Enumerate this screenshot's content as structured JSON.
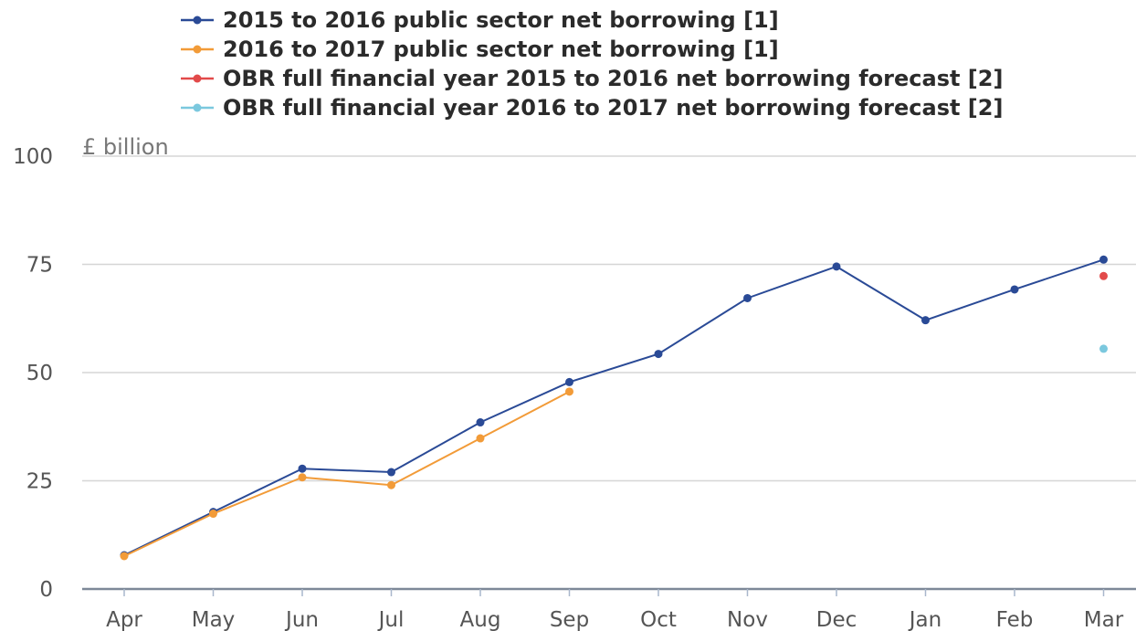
{
  "chart_data": {
    "type": "line",
    "ylabel": "£ billion",
    "ylim": [
      0,
      100
    ],
    "yticks": [
      0,
      25,
      50,
      75,
      100
    ],
    "categories": [
      "Apr",
      "May",
      "Jun",
      "Jul",
      "Aug",
      "Sep",
      "Oct",
      "Nov",
      "Dec",
      "Jan",
      "Feb",
      "Mar"
    ],
    "grid": true,
    "legend_position": "top",
    "series": [
      {
        "name": "2015 to 2016 public sector net borrowing [1]",
        "color": "#2a4a96",
        "kind": "line",
        "values": [
          7.8,
          17.8,
          27.8,
          27.0,
          38.5,
          47.8,
          54.3,
          67.2,
          74.5,
          62.1,
          69.2,
          76.1
        ]
      },
      {
        "name": "2016 to 2017 public sector net borrowing [1]",
        "color": "#f29b38",
        "kind": "line",
        "values": [
          7.6,
          17.4,
          25.8,
          24.0,
          34.8,
          45.6,
          null,
          null,
          null,
          null,
          null,
          null
        ]
      },
      {
        "name": "OBR full financial year 2015 to 2016 net borrowing forecast [2]",
        "color": "#e24a4a",
        "kind": "point",
        "values": [
          null,
          null,
          null,
          null,
          null,
          null,
          null,
          null,
          null,
          null,
          null,
          72.3
        ]
      },
      {
        "name": "OBR full financial year 2016 to 2017 net borrowing forecast [2]",
        "color": "#7bc8de",
        "kind": "point",
        "values": [
          null,
          null,
          null,
          null,
          null,
          null,
          null,
          null,
          null,
          null,
          null,
          55.5
        ]
      }
    ]
  }
}
